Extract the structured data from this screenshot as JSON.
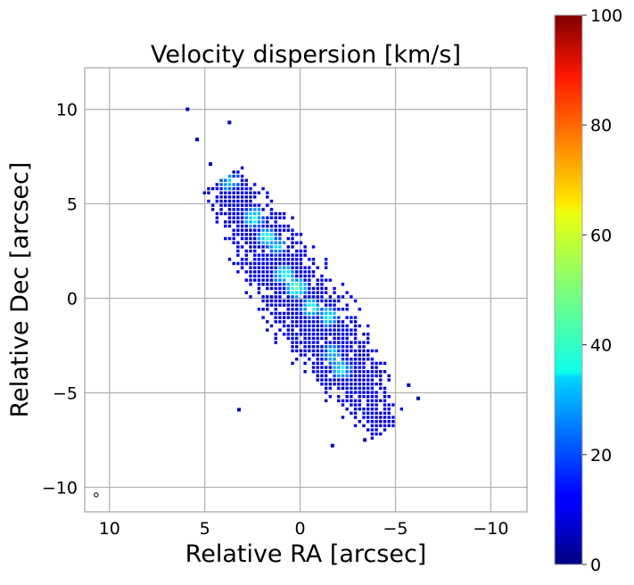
{
  "chart_data": {
    "type": "heatmap",
    "title": "Velocity dispersion [km/s]",
    "xlabel": "Relative RA [arcsec]",
    "ylabel": "Relative Dec [arcsec]",
    "xlim": [
      11.3,
      -11.9
    ],
    "ylim": [
      -11.3,
      12.2
    ],
    "x_ticks": [
      10,
      5,
      0,
      -5,
      -10
    ],
    "x_tick_labels": [
      "10",
      "5",
      "0",
      "−5",
      "−10"
    ],
    "y_ticks": [
      10,
      5,
      0,
      -5,
      -10
    ],
    "y_tick_labels": [
      "10",
      "5",
      "0",
      "−5",
      "−10"
    ],
    "grid": true,
    "colormap": "jet",
    "colorbar": {
      "range": [
        0,
        100
      ],
      "ticks": [
        0,
        20,
        40,
        60,
        80,
        100
      ],
      "tick_labels": [
        "0",
        "20",
        "40",
        "60",
        "80",
        "100"
      ]
    },
    "emission_region": {
      "description_values": "elongated disk of velocity dispersion values along a NE-SW axis",
      "ridge_start": [
        4.0,
        6.0
      ],
      "ridge_end": [
        -4.3,
        -6.8
      ],
      "typical_value": 10,
      "peak_value": 45,
      "bright_points": [
        {
          "x": 3.8,
          "y": 6.1,
          "v": 30
        },
        {
          "x": 2.5,
          "y": 4.2,
          "v": 38
        },
        {
          "x": 1.8,
          "y": 3.2,
          "v": 42
        },
        {
          "x": 0.9,
          "y": 1.2,
          "v": 40
        },
        {
          "x": 0.3,
          "y": 0.5,
          "v": 45
        },
        {
          "x": -0.5,
          "y": -0.6,
          "v": 40
        },
        {
          "x": -1.4,
          "y": -1.0,
          "v": 35
        },
        {
          "x": -1.6,
          "y": -3.0,
          "v": 30
        },
        {
          "x": -2.1,
          "y": -3.8,
          "v": 35
        },
        {
          "x": 1.3,
          "y": 2.7,
          "v": 28
        }
      ],
      "isolated_pixels": [
        {
          "x": 6.0,
          "y": 10.1,
          "v": 5
        },
        {
          "x": 3.8,
          "y": 9.4,
          "v": 5
        },
        {
          "x": 5.5,
          "y": 8.5,
          "v": 5
        },
        {
          "x": 4.8,
          "y": 7.2,
          "v": 5
        },
        {
          "x": 3.3,
          "y": -5.8,
          "v": 5
        },
        {
          "x": -5.6,
          "y": -4.5,
          "v": 5
        },
        {
          "x": -6.1,
          "y": -5.2,
          "v": 5
        },
        {
          "x": -1.6,
          "y": -7.7,
          "v": 5
        },
        {
          "x": -3.3,
          "y": -7.4,
          "v": 5
        }
      ]
    },
    "beam_marker": {
      "x": 10.7,
      "y": -10.4
    }
  }
}
